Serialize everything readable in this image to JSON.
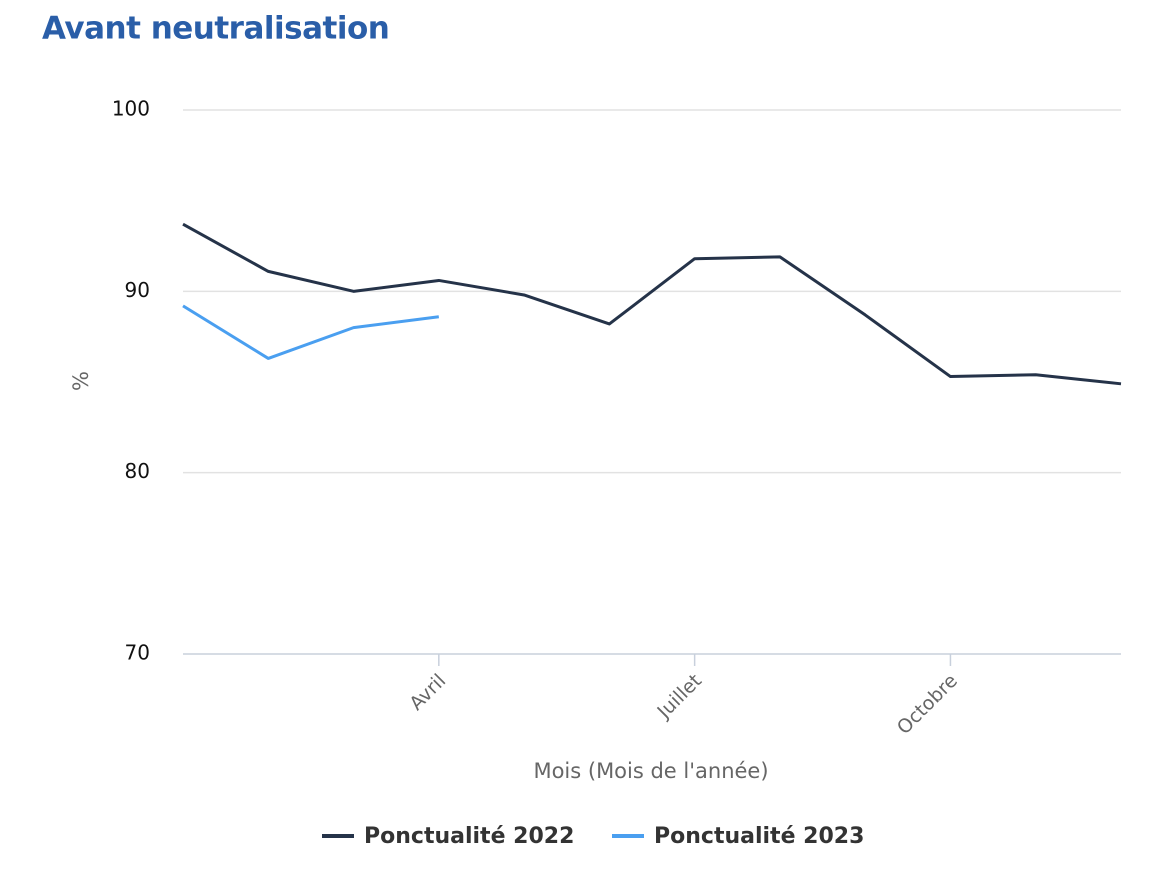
{
  "chart_data": {
    "type": "line",
    "title": "Avant neutralisation",
    "x_label": "Mois (Mois de l'année)",
    "y_label": "%",
    "categories": [
      null,
      null,
      null,
      "Avril",
      null,
      null,
      "Juillet",
      null,
      null,
      "Octobre",
      null,
      null
    ],
    "series": [
      {
        "name": "Ponctualité 2022",
        "color": "#253349",
        "values": [
          93.7,
          91.1,
          90.0,
          90.6,
          89.8,
          88.2,
          91.8,
          91.9,
          88.7,
          85.3,
          85.4,
          84.9
        ]
      },
      {
        "name": "Ponctualité 2023",
        "color": "#4a9ff0",
        "values": [
          89.2,
          86.3,
          88.0,
          88.6,
          null,
          null,
          null,
          null,
          null,
          null,
          null,
          null
        ]
      }
    ],
    "ylim": [
      70,
      100
    ],
    "yticks": [
      70,
      80,
      90,
      100
    ],
    "grid": true,
    "legend": "bottom"
  }
}
